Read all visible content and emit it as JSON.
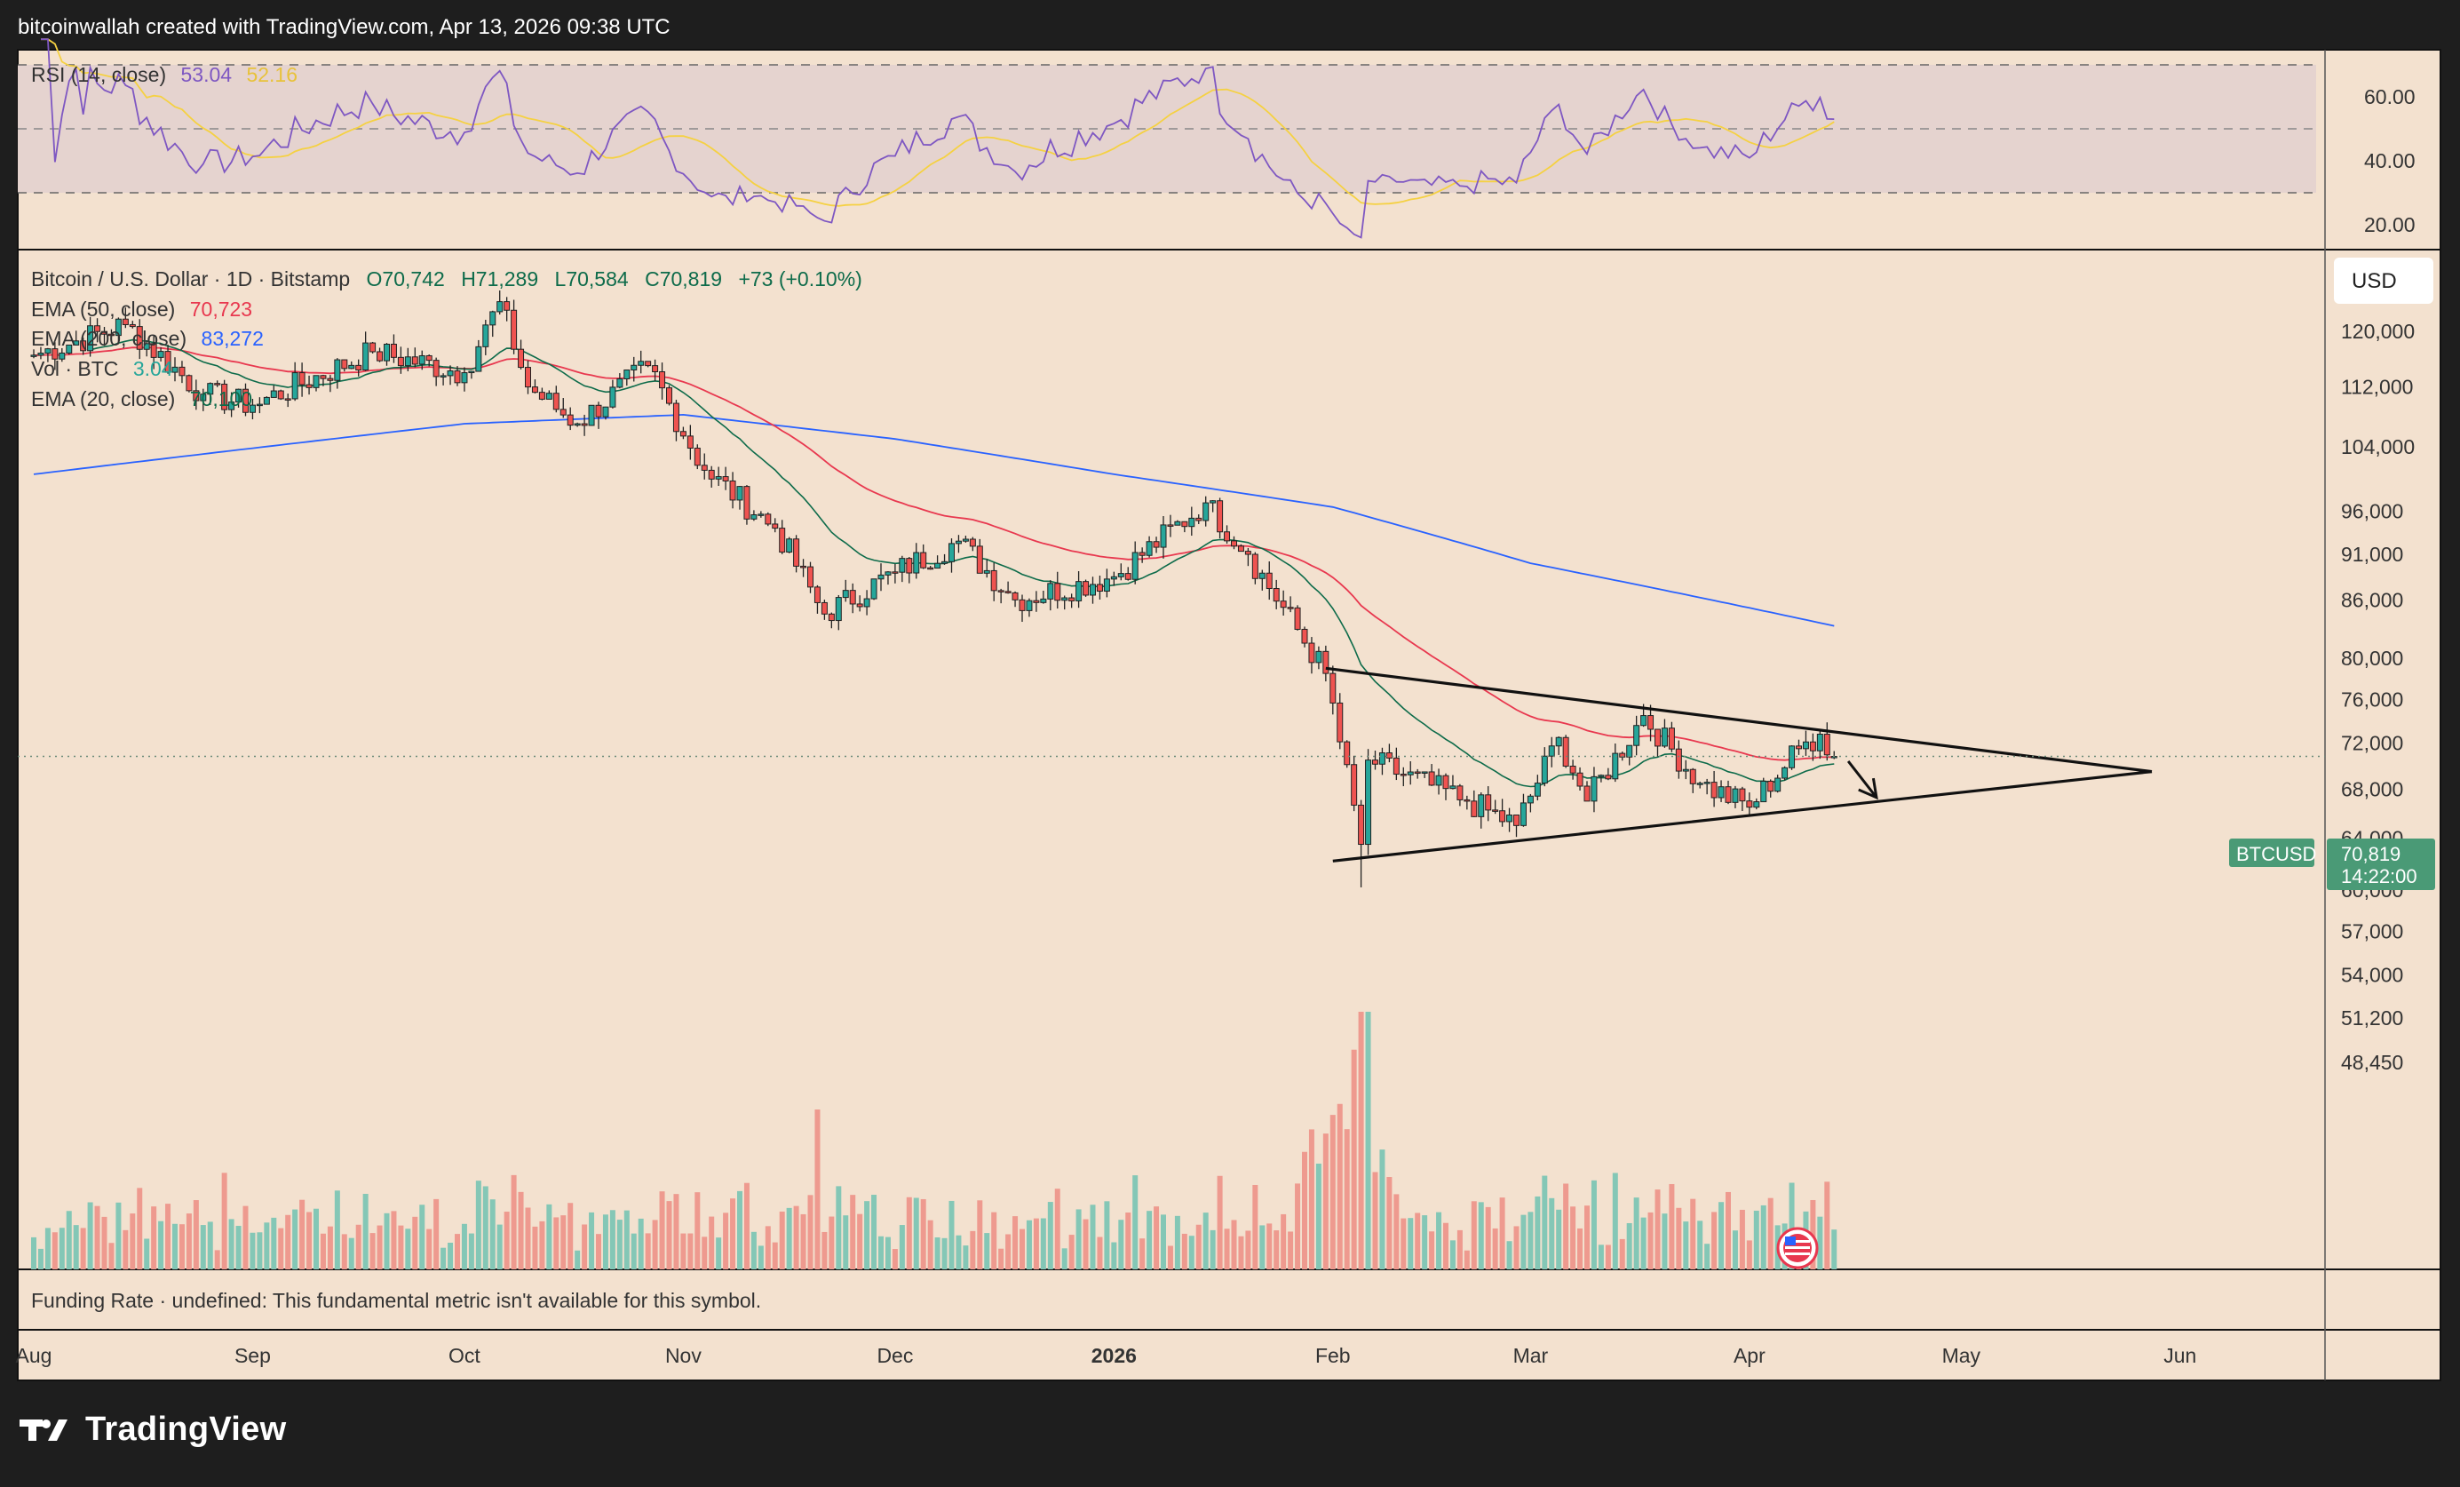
{
  "header": {
    "text": "bitcoinwallah created with TradingView.com, Apr 13, 2026 09:38 UTC"
  },
  "brand": {
    "name": "TradingView"
  },
  "rsi_panel": {
    "label": "RSI (14, close)",
    "value": "53.04",
    "ma_value": "52.16",
    "ticks": [
      "60.00",
      "40.00",
      "20.00"
    ]
  },
  "main_panel": {
    "symbol_line": "Bitcoin / U.S. Dollar · 1D · Bitstamp",
    "ohlc": {
      "open": "O70,742",
      "high": "H71,289",
      "low": "L70,584",
      "close": "C70,819",
      "change": "+73 (+0.10%)"
    },
    "legend": [
      {
        "label": "EMA (50, close)",
        "value": "70,723",
        "color": "#e8384f"
      },
      {
        "label": "EMA (200, close)",
        "value": "83,272",
        "color": "#2962ff"
      },
      {
        "label": "Vol · BTC",
        "value": "3.04",
        "color": "#26a69a"
      },
      {
        "label": "EMA (20, close)",
        "value": "70,100",
        "color": "#0d6b4a"
      }
    ],
    "currency": "USD",
    "price_ticks": [
      "120,000",
      "112,000",
      "104,000",
      "96,000",
      "91,000",
      "86,000",
      "80,000",
      "76,000",
      "72,000",
      "68,000",
      "64,000",
      "60,000",
      "57,000",
      "54,000",
      "51,200",
      "48,450"
    ],
    "price_tag": {
      "symbol": "BTCUSD",
      "price": "70,819",
      "countdown": "14:22:00"
    }
  },
  "funding_panel": {
    "text": "Funding Rate · undefined: This fundamental metric isn't available for this symbol."
  },
  "time_axis": [
    "Aug",
    "Sep",
    "Oct",
    "Nov",
    "Dec",
    "2026",
    "Feb",
    "Mar",
    "Apr",
    "May",
    "Jun"
  ],
  "colors": {
    "up": "#26a69a",
    "down": "#ef5350",
    "background": "#f3e1cf",
    "rsi_line": "#7e57c2",
    "rsi_ma": "#f5d142"
  },
  "chart_data": {
    "type": "candlestick",
    "title": "Bitcoin / U.S. Dollar · 1D · Bitstamp",
    "y_scale": "log",
    "ylim": [
      46000,
      128000
    ],
    "xlim": [
      "2025-08-01",
      "2026-06-30"
    ],
    "monthly_path": [
      {
        "date": "2025-08-01",
        "close": 116500
      },
      {
        "date": "2025-08-14",
        "close": 121000
      },
      {
        "date": "2025-08-25",
        "close": 111000
      },
      {
        "date": "2025-09-01",
        "close": 109500
      },
      {
        "date": "2025-09-18",
        "close": 117000
      },
      {
        "date": "2025-10-01",
        "close": 114000
      },
      {
        "date": "2025-10-06",
        "close": 124500
      },
      {
        "date": "2025-10-10",
        "close": 112000
      },
      {
        "date": "2025-10-17",
        "close": 107000
      },
      {
        "date": "2025-10-27",
        "close": 115000
      },
      {
        "date": "2025-11-04",
        "close": 101000
      },
      {
        "date": "2025-11-14",
        "close": 94000
      },
      {
        "date": "2025-11-21",
        "close": 84500
      },
      {
        "date": "2025-12-01",
        "close": 89000
      },
      {
        "date": "2025-12-10",
        "close": 92500
      },
      {
        "date": "2025-12-18",
        "close": 86000
      },
      {
        "date": "2026-01-01",
        "close": 88500
      },
      {
        "date": "2026-01-14",
        "close": 97000
      },
      {
        "date": "2026-01-20",
        "close": 91000
      },
      {
        "date": "2026-01-31",
        "close": 78500
      },
      {
        "date": "2026-02-05",
        "close": 63500
      },
      {
        "date": "2026-02-06",
        "close": 70500
      },
      {
        "date": "2026-02-20",
        "close": 67000
      },
      {
        "date": "2026-02-27",
        "close": 65000
      },
      {
        "date": "2026-03-05",
        "close": 72500
      },
      {
        "date": "2026-03-09",
        "close": 67000
      },
      {
        "date": "2026-03-17",
        "close": 74500
      },
      {
        "date": "2026-03-25",
        "close": 68500
      },
      {
        "date": "2026-04-01",
        "close": 66500
      },
      {
        "date": "2026-04-08",
        "close": 71500
      },
      {
        "date": "2026-04-11",
        "close": 72800
      },
      {
        "date": "2026-04-13",
        "close": 70819
      }
    ],
    "ema_200_path": [
      {
        "date": "2025-08-01",
        "value": 100500
      },
      {
        "date": "2025-10-01",
        "value": 107000
      },
      {
        "date": "2025-11-01",
        "value": 108200
      },
      {
        "date": "2025-12-01",
        "value": 105000
      },
      {
        "date": "2026-01-01",
        "value": 100500
      },
      {
        "date": "2026-02-01",
        "value": 96500
      },
      {
        "date": "2026-03-01",
        "value": 90000
      },
      {
        "date": "2026-04-13",
        "value": 83272
      }
    ],
    "ema_50_last": 70723,
    "ema_20_last": 70100,
    "triangle_pattern": {
      "upper_trendline": [
        {
          "date": "2026-01-31",
          "price": 79000
        },
        {
          "date": "2026-05-28",
          "price": 69500
        }
      ],
      "lower_trendline": [
        {
          "date": "2026-02-01",
          "price": 62200
        },
        {
          "date": "2026-05-28",
          "price": 69500
        }
      ],
      "arrow": [
        {
          "date": "2026-04-15",
          "price": 70400
        },
        {
          "date": "2026-04-19",
          "price": 67300
        }
      ]
    },
    "last_price": 70819,
    "rsi": {
      "last": 53.04,
      "ma_last": 52.16,
      "bands": [
        30,
        50,
        70
      ],
      "min_date": "2026-02-05",
      "min_value": 16
    }
  }
}
